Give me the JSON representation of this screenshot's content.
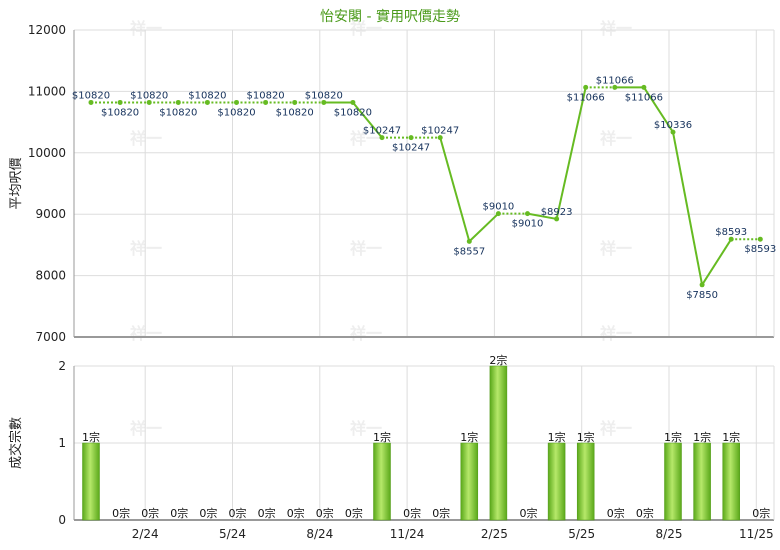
{
  "title": "怡安閣 - 實用呎價走勢",
  "watermark": "祥一",
  "colors": {
    "line": "#66bb22",
    "bar_dark": "#5aa81a",
    "bar_light": "#b6e86a",
    "grid": "#dddddd",
    "axis": "#999999",
    "label": "#16325c"
  },
  "chart_data": [
    {
      "type": "line",
      "ylabel": "平均呎價",
      "ylim": [
        7000,
        12000
      ],
      "yticks": [
        "12000",
        "11000",
        "10000",
        "9000",
        "8000",
        "7000"
      ],
      "xticks": [
        "2/24",
        "5/24",
        "8/24",
        "11/24",
        "2/25",
        "5/25",
        "8/25",
        "11/25"
      ],
      "points": [
        {
          "v": 10820,
          "label": "$10820",
          "carry": true
        },
        {
          "v": 10820,
          "label": "$10820",
          "carry": true
        },
        {
          "v": 10820,
          "label": "$10820",
          "carry": true
        },
        {
          "v": 10820,
          "label": "$10820",
          "carry": true
        },
        {
          "v": 10820,
          "label": "$10820",
          "carry": true
        },
        {
          "v": 10820,
          "label": "$10820",
          "carry": true
        },
        {
          "v": 10820,
          "label": "$10820",
          "carry": true
        },
        {
          "v": 10820,
          "label": "$10820",
          "carry": true
        },
        {
          "v": 10820,
          "label": "$10820",
          "carry": true
        },
        {
          "v": 10820,
          "label": "$10820",
          "carry": false
        },
        {
          "v": 10247,
          "label": "$10247",
          "carry": false
        },
        {
          "v": 10247,
          "label": "$10247",
          "carry": true
        },
        {
          "v": 10247,
          "label": "$10247",
          "carry": true
        },
        {
          "v": 8557,
          "label": "$8557",
          "carry": false
        },
        {
          "v": 9010,
          "label": "$9010",
          "carry": false
        },
        {
          "v": 9010,
          "label": "$9010",
          "carry": true
        },
        {
          "v": 8923,
          "label": "$8923",
          "carry": false
        },
        {
          "v": 11066,
          "label": "$11066",
          "carry": false
        },
        {
          "v": 11066,
          "label": "$11066",
          "carry": true
        },
        {
          "v": 11066,
          "label": "$11066",
          "carry": false
        },
        {
          "v": 10336,
          "label": "$10336",
          "carry": false
        },
        {
          "v": 7850,
          "label": "$7850",
          "carry": false
        },
        {
          "v": 8593,
          "label": "$8593",
          "carry": false
        },
        {
          "v": 8593,
          "label": "$8593",
          "carry": true
        }
      ]
    },
    {
      "type": "bar",
      "ylabel": "成交宗數",
      "ylim": [
        0,
        2
      ],
      "yticks": [
        "2",
        "1",
        "0"
      ],
      "xticks": [
        "2/24",
        "5/24",
        "8/24",
        "11/24",
        "2/25",
        "5/25",
        "8/25",
        "11/25"
      ],
      "values": [
        1,
        0,
        0,
        0,
        0,
        0,
        0,
        0,
        0,
        0,
        1,
        0,
        0,
        1,
        2,
        0,
        1,
        1,
        0,
        0,
        1,
        1,
        1,
        0
      ],
      "labels": [
        "1宗",
        "0宗",
        "0宗",
        "0宗",
        "0宗",
        "0宗",
        "0宗",
        "0宗",
        "0宗",
        "0宗",
        "1宗",
        "0宗",
        "0宗",
        "1宗",
        "2宗",
        "0宗",
        "1宗",
        "1宗",
        "0宗",
        "0宗",
        "1宗",
        "1宗",
        "1宗",
        "0宗"
      ]
    }
  ]
}
